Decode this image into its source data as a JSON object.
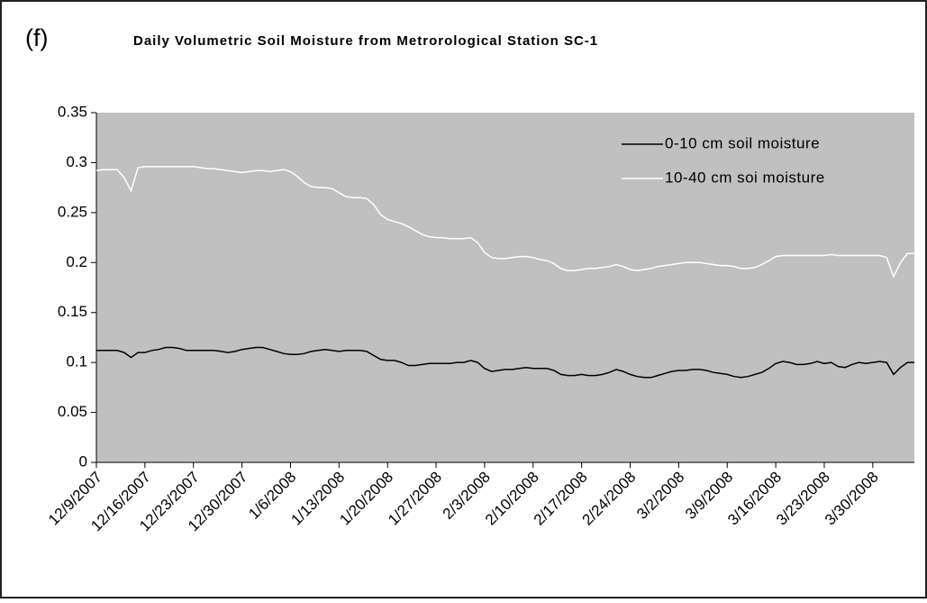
{
  "chart_data": {
    "type": "line",
    "panel_label": "(f)",
    "title": "Daily Volumetric Soil Moisture from Metrorological Station SC-1",
    "categories": [
      "12/9/2007",
      null,
      null,
      null,
      null,
      null,
      null,
      "12/16/2007",
      null,
      null,
      null,
      null,
      null,
      null,
      "12/23/2007",
      null,
      null,
      null,
      null,
      null,
      null,
      "12/30/2007",
      null,
      null,
      null,
      null,
      null,
      null,
      "1/6/2008",
      null,
      null,
      null,
      null,
      null,
      null,
      "1/13/2008",
      null,
      null,
      null,
      null,
      null,
      null,
      "1/20/2008",
      null,
      null,
      null,
      null,
      null,
      null,
      "1/27/2008",
      null,
      null,
      null,
      null,
      null,
      null,
      "2/3/2008",
      null,
      null,
      null,
      null,
      null,
      null,
      "2/10/2008",
      null,
      null,
      null,
      null,
      null,
      null,
      "2/17/2008",
      null,
      null,
      null,
      null,
      null,
      null,
      "2/24/2008",
      null,
      null,
      null,
      null,
      null,
      null,
      "3/2/2008",
      null,
      null,
      null,
      null,
      null,
      null,
      "3/9/2008",
      null,
      null,
      null,
      null,
      null,
      null,
      "3/16/2008",
      null,
      null,
      null,
      null,
      null,
      null,
      "3/23/2008",
      null,
      null,
      null,
      null,
      null,
      null,
      "3/30/2008",
      null,
      null,
      null,
      null,
      null,
      null
    ],
    "series": [
      {
        "name": "0-10 cm soil moisture",
        "color": "#000000",
        "values": [
          0.112,
          0.112,
          0.112,
          0.112,
          0.11,
          0.105,
          0.11,
          0.11,
          0.112,
          0.113,
          0.115,
          0.115,
          0.114,
          0.112,
          0.112,
          0.112,
          0.112,
          0.112,
          0.111,
          0.11,
          0.111,
          0.113,
          0.114,
          0.115,
          0.115,
          0.113,
          0.111,
          0.109,
          0.108,
          0.108,
          0.109,
          0.111,
          0.112,
          0.113,
          0.112,
          0.111,
          0.112,
          0.112,
          0.112,
          0.111,
          0.107,
          0.103,
          0.102,
          0.102,
          0.1,
          0.097,
          0.097,
          0.098,
          0.099,
          0.099,
          0.099,
          0.099,
          0.1,
          0.1,
          0.102,
          0.1,
          0.094,
          0.091,
          0.092,
          0.093,
          0.093,
          0.094,
          0.095,
          0.094,
          0.094,
          0.094,
          0.092,
          0.088,
          0.087,
          0.087,
          0.088,
          0.087,
          0.087,
          0.088,
          0.09,
          0.093,
          0.091,
          0.088,
          0.086,
          0.085,
          0.085,
          0.087,
          0.089,
          0.091,
          0.092,
          0.092,
          0.093,
          0.093,
          0.092,
          0.09,
          0.089,
          0.088,
          0.086,
          0.085,
          0.086,
          0.088,
          0.09,
          0.094,
          0.099,
          0.101,
          0.1,
          0.098,
          0.098,
          0.099,
          0.101,
          0.099,
          0.1,
          0.096,
          0.095,
          0.098,
          0.1,
          0.099,
          0.1,
          0.101,
          0.1,
          0.088,
          0.095,
          0.1,
          0.1
        ]
      },
      {
        "name": "10-40 cm soi moisture",
        "color": "#ffffff",
        "values": [
          0.292,
          0.293,
          0.293,
          0.293,
          0.285,
          0.272,
          0.295,
          0.296,
          0.296,
          0.296,
          0.296,
          0.296,
          0.296,
          0.296,
          0.296,
          0.295,
          0.294,
          0.294,
          0.293,
          0.292,
          0.291,
          0.29,
          0.291,
          0.292,
          0.292,
          0.291,
          0.292,
          0.293,
          0.291,
          0.286,
          0.28,
          0.276,
          0.275,
          0.275,
          0.274,
          0.27,
          0.266,
          0.265,
          0.265,
          0.264,
          0.258,
          0.248,
          0.243,
          0.241,
          0.239,
          0.236,
          0.232,
          0.228,
          0.226,
          0.225,
          0.225,
          0.224,
          0.224,
          0.224,
          0.225,
          0.22,
          0.21,
          0.205,
          0.204,
          0.204,
          0.205,
          0.206,
          0.206,
          0.205,
          0.203,
          0.202,
          0.199,
          0.194,
          0.192,
          0.192,
          0.193,
          0.194,
          0.194,
          0.195,
          0.196,
          0.198,
          0.196,
          0.193,
          0.192,
          0.193,
          0.194,
          0.196,
          0.197,
          0.198,
          0.199,
          0.2,
          0.2,
          0.2,
          0.199,
          0.198,
          0.197,
          0.197,
          0.196,
          0.194,
          0.194,
          0.195,
          0.198,
          0.202,
          0.206,
          0.207,
          0.207,
          0.207,
          0.207,
          0.207,
          0.207,
          0.207,
          0.208,
          0.207,
          0.207,
          0.207,
          0.207,
          0.207,
          0.207,
          0.207,
          0.205,
          0.186,
          0.2,
          0.209,
          0.209
        ]
      }
    ],
    "ylim": [
      0,
      0.35
    ],
    "yticks": [
      0,
      0.05,
      0.1,
      0.15,
      0.2,
      0.25,
      0.3,
      0.35
    ],
    "plot_background": "#c0c0c0",
    "legend": "upper right"
  }
}
